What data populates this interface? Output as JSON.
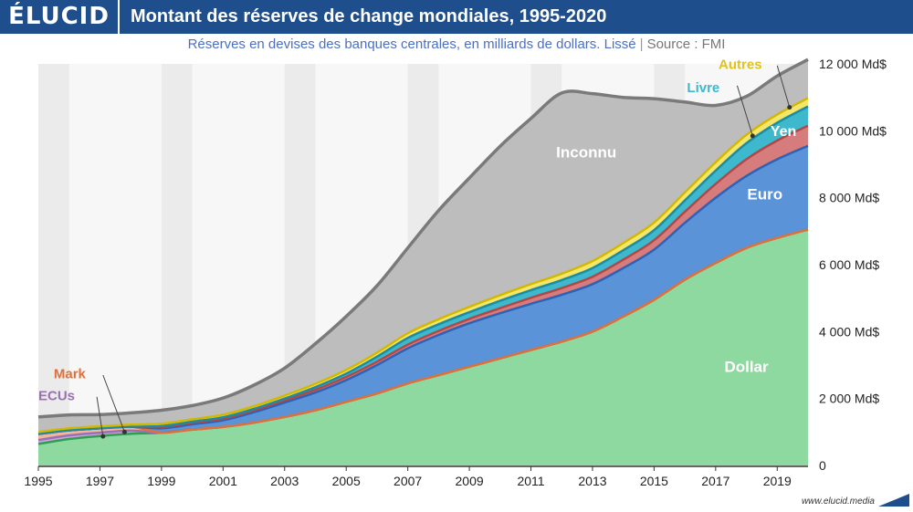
{
  "header": {
    "logo": "ÉLUCID",
    "title": "Montant des réserves de change mondiales, 1995-2020"
  },
  "subtitle": {
    "text": "Réserves en devises des banques centrales, en milliards de dollars. Lissé",
    "separator": "|",
    "source": "Source : FMI"
  },
  "footer": {
    "url": "www.elucid.media"
  },
  "chart_data": {
    "type": "area",
    "stacked": true,
    "x": [
      1995,
      1996,
      1997,
      1998,
      1999,
      2000,
      2001,
      2002,
      2003,
      2004,
      2005,
      2006,
      2007,
      2008,
      2009,
      2010,
      2011,
      2012,
      2013,
      2014,
      2015,
      2016,
      2017,
      2018,
      2019,
      2020
    ],
    "series": [
      {
        "name": "Dollar",
        "color": "#8ed9a0",
        "line": "#2f9e53",
        "values": [
          640,
          790,
          880,
          950,
          980,
          1070,
          1150,
          1280,
          1450,
          1650,
          1900,
          2150,
          2450,
          2700,
          2950,
          3200,
          3450,
          3700,
          4000,
          4450,
          4950,
          5550,
          6050,
          6500,
          6800,
          7050
        ]
      },
      {
        "name": "Euro",
        "color": "#5b93d8",
        "line": "#2d62b4",
        "values": [
          0,
          0,
          0,
          0,
          130,
          160,
          200,
          310,
          430,
          530,
          650,
          850,
          1050,
          1200,
          1300,
          1350,
          1380,
          1400,
          1420,
          1450,
          1500,
          1700,
          1950,
          2150,
          2350,
          2500
        ]
      },
      {
        "name": "Yen",
        "color": "#d67c7c",
        "line": "#b04848",
        "values": [
          0,
          0,
          0,
          0,
          40,
          45,
          50,
          55,
          65,
          80,
          95,
          100,
          110,
          120,
          130,
          150,
          180,
          200,
          220,
          250,
          280,
          330,
          410,
          500,
          560,
          600
        ]
      },
      {
        "name": "Livre",
        "color": "#3db8cc",
        "line": "#1d8ca3",
        "values": [
          0,
          0,
          0,
          0,
          30,
          35,
          40,
          45,
          55,
          80,
          100,
          150,
          200,
          200,
          200,
          220,
          230,
          240,
          260,
          280,
          300,
          340,
          400,
          480,
          530,
          580
        ]
      },
      {
        "name": "Autres",
        "color": "#f2e66b",
        "line": "#d4b800",
        "values": [
          60,
          60,
          60,
          60,
          70,
          70,
          75,
          80,
          90,
          100,
          110,
          120,
          140,
          150,
          160,
          170,
          180,
          190,
          210,
          220,
          230,
          240,
          250,
          250,
          250,
          250
        ]
      },
      {
        "name": "Mark",
        "color": "#f2b69a",
        "line": "#e0703a",
        "values": [
          180,
          150,
          130,
          120,
          0,
          0,
          0,
          0,
          0,
          0,
          0,
          0,
          0,
          0,
          0,
          0,
          0,
          0,
          0,
          0,
          0,
          0,
          0,
          0,
          0,
          0
        ]
      },
      {
        "name": "ECUs",
        "color": "#c9a7d9",
        "line": "#9b6fb5",
        "values": [
          120,
          110,
          100,
          90,
          0,
          0,
          0,
          0,
          0,
          0,
          0,
          0,
          0,
          0,
          0,
          0,
          0,
          0,
          0,
          0,
          0,
          0,
          0,
          0,
          0,
          0
        ]
      },
      {
        "name": "Inconnu",
        "color": "#bdbdbd",
        "line": "#7a7a7a",
        "values": [
          450,
          400,
          350,
          350,
          400,
          410,
          500,
          630,
          820,
          1200,
          1600,
          2000,
          2550,
          3250,
          3850,
          4450,
          4950,
          5400,
          5000,
          4350,
          3700,
          2700,
          1700,
          1150,
          1150,
          1150
        ]
      }
    ],
    "y_ticks": [
      0,
      2000,
      4000,
      6000,
      8000,
      10000,
      12000
    ],
    "y_tick_labels": [
      "0",
      "2 000 Md$",
      "4 000 Md$",
      "6 000 Md$",
      "8 000 Md$",
      "10 000 Md$",
      "12 000 Md$"
    ],
    "x_ticks": [
      1995,
      1997,
      1999,
      2001,
      2003,
      2005,
      2007,
      2009,
      2011,
      2013,
      2015,
      2017,
      2019
    ],
    "x_tick_labels": [
      "1995",
      "1997",
      "1999",
      "2001",
      "2003",
      "2005",
      "2007",
      "2009",
      "2011",
      "2013",
      "2015",
      "2017",
      "2019"
    ],
    "ylim": [
      0,
      12000
    ],
    "xlim": [
      1995,
      2020
    ],
    "grid": "alternating vertical bands",
    "labels": {
      "Dollar": {
        "text": "Dollar",
        "color": "#ffffff",
        "at_x": 2018,
        "at_y": 2800
      },
      "Euro": {
        "text": "Euro",
        "color": "#ffffff",
        "at_x": 2018.6,
        "at_y": 7950
      },
      "Yen": {
        "text": "Yen",
        "color": "#ffffff",
        "at_x": 2019.2,
        "at_y": 9850
      },
      "Inconnu": {
        "text": "Inconnu",
        "color": "#ffffff",
        "at_x": 2012.8,
        "at_y": 9200
      },
      "Livre": {
        "text": "Livre",
        "color": "#3db8cc",
        "at_x": 2016.6,
        "at_y": 11150
      },
      "Autres": {
        "text": "Autres",
        "color": "#e0c21a",
        "at_x": 2017.8,
        "at_y": 11850
      },
      "Mark": {
        "text": "Mark",
        "color": "#e0703a",
        "at_x": 1995.5,
        "at_y": 2600
      },
      "ECUs": {
        "text": "ECUs",
        "color": "#9b6fb5",
        "at_x": 1995,
        "at_y": 1950
      }
    }
  }
}
